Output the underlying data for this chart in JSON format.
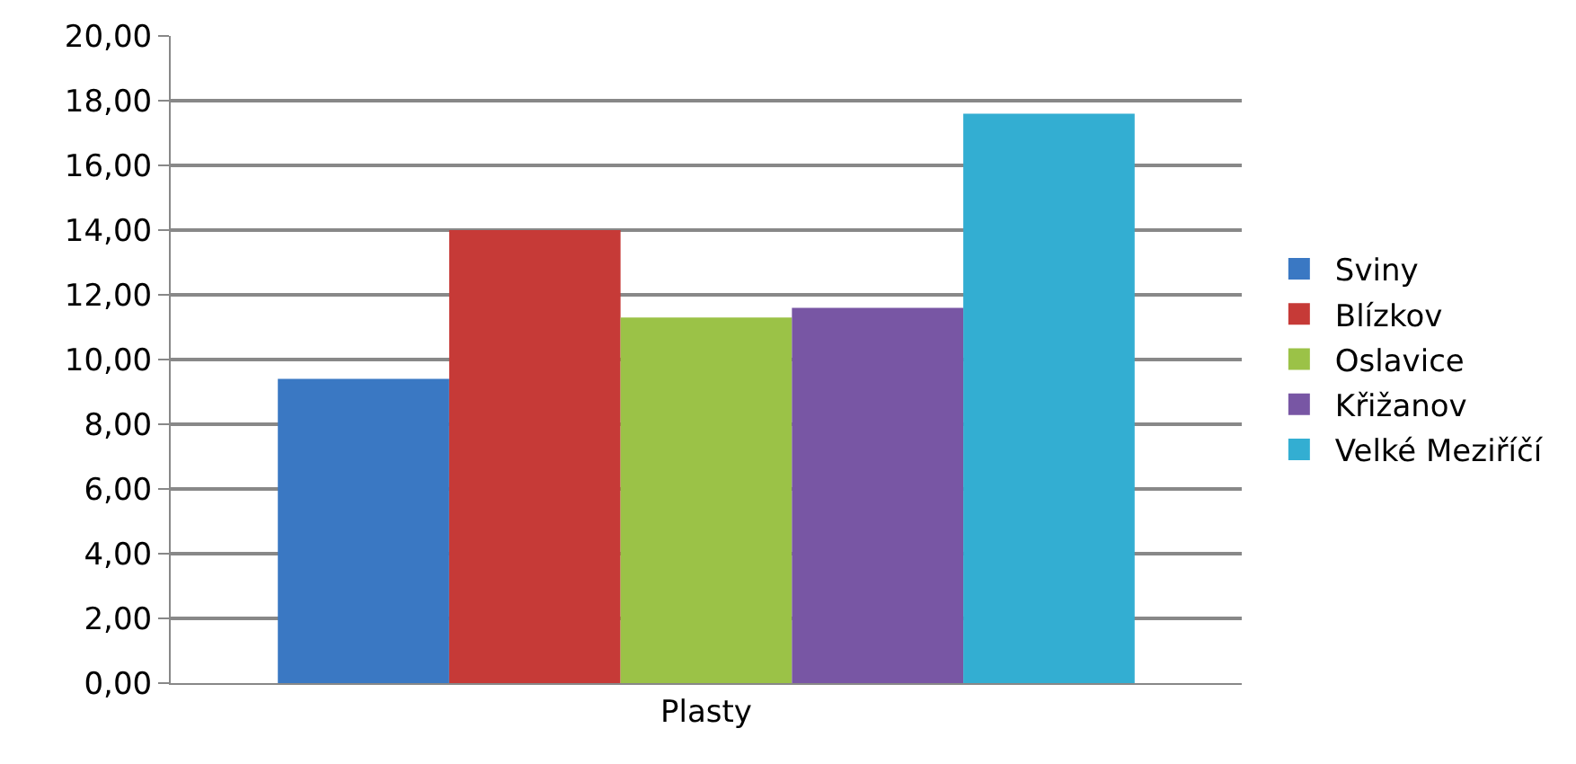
{
  "chart_data": {
    "type": "bar",
    "categories": [
      "Plasty"
    ],
    "series": [
      {
        "name": "Sviny",
        "color": "#3a78c3",
        "values": [
          9.4
        ]
      },
      {
        "name": "Blízkov",
        "color": "#c63a37",
        "values": [
          14.0
        ]
      },
      {
        "name": "Oslavice",
        "color": "#9bc247",
        "values": [
          11.3
        ]
      },
      {
        "name": "Křižanov",
        "color": "#7856a4",
        "values": [
          11.6
        ]
      },
      {
        "name": "Velké Meziříčí",
        "color": "#33aed2",
        "values": [
          17.6
        ]
      }
    ],
    "ylim": [
      0,
      20
    ],
    "yticks": [
      {
        "value": 0,
        "label": "0,00"
      },
      {
        "value": 2,
        "label": "2,00"
      },
      {
        "value": 4,
        "label": "4,00"
      },
      {
        "value": 6,
        "label": "6,00"
      },
      {
        "value": 8,
        "label": "8,00"
      },
      {
        "value": 10,
        "label": "10,00"
      },
      {
        "value": 12,
        "label": "12,00"
      },
      {
        "value": 14,
        "label": "14,00"
      },
      {
        "value": 16,
        "label": "16,00"
      },
      {
        "value": 18,
        "label": "18,00"
      },
      {
        "value": 20,
        "label": "20,00"
      }
    ],
    "grid": "y",
    "legend": "right"
  }
}
